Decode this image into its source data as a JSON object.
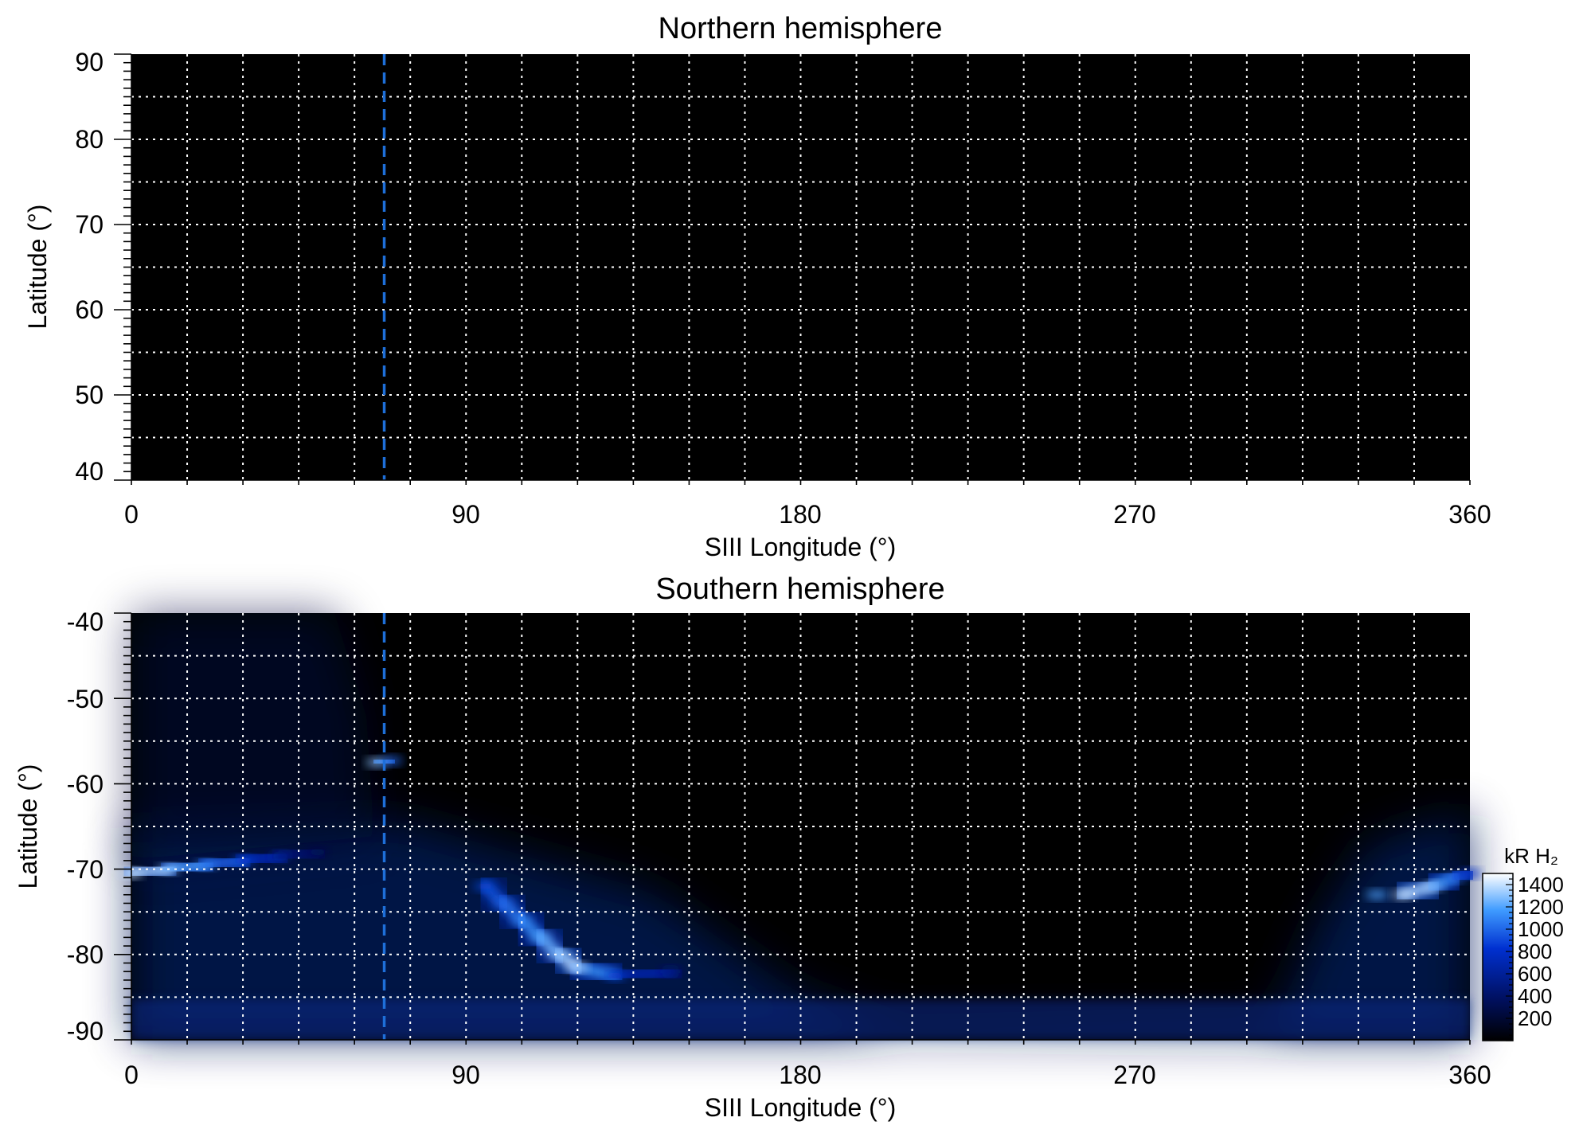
{
  "chart_data": [
    {
      "type": "heatmap",
      "title": "Northern hemisphere",
      "xlabel": "SIII Longitude (°)",
      "ylabel": "Latitude (°)",
      "xlim": [
        0,
        360
      ],
      "ylim": [
        40,
        90
      ],
      "xticks": [
        "0",
        "90",
        "180",
        "270",
        "360"
      ],
      "yticks": [
        "90",
        "80",
        "70",
        "60",
        "50",
        "40"
      ],
      "grid": true,
      "grid_spacing": {
        "longitude": 15,
        "latitude": 5
      },
      "marker_longitude": 68,
      "emission": []
    },
    {
      "type": "heatmap",
      "title": "Southern hemisphere",
      "xlabel": "SIII Longitude (°)",
      "ylabel": "Latitude (°)",
      "xlim": [
        0,
        360
      ],
      "ylim": [
        -90,
        -40
      ],
      "xticks": [
        "0",
        "90",
        "180",
        "270",
        "360"
      ],
      "yticks": [
        "-40",
        "-50",
        "-60",
        "-70",
        "-80",
        "-90"
      ],
      "grid": true,
      "grid_spacing": {
        "longitude": 15,
        "latitude": 5
      },
      "marker_longitude": 68,
      "emission": [
        {
          "region": "main oval arc 0-40°",
          "points": [
            [
              0,
              -70.5,
              1400
            ],
            [
              10,
              -70,
              1300
            ],
            [
              20,
              -69.5,
              1100
            ],
            [
              30,
              -69,
              900
            ],
            [
              40,
              -68.5,
              600
            ],
            [
              50,
              -68,
              300
            ]
          ]
        },
        {
          "region": "spot near 68°",
          "points": [
            [
              66,
              -57.5,
              1300
            ],
            [
              70,
              -57.3,
              1000
            ]
          ]
        },
        {
          "region": "arc 95-140°",
          "points": [
            [
              95,
              -72,
              900
            ],
            [
              100,
              -74,
              1000
            ],
            [
              105,
              -76,
              1100
            ],
            [
              110,
              -78,
              1200
            ],
            [
              115,
              -80,
              1300
            ],
            [
              120,
              -81.5,
              1400
            ],
            [
              130,
              -82.5,
              900
            ],
            [
              145,
              -82,
              500
            ]
          ]
        },
        {
          "region": "main oval 335-360°",
          "points": [
            [
              335,
              -73,
              1200
            ],
            [
              342,
              -73,
              1400
            ],
            [
              350,
              -72,
              1300
            ],
            [
              356,
              -71,
              1000
            ],
            [
              360,
              -70.5,
              800
            ]
          ]
        }
      ]
    }
  ],
  "colorbar": {
    "title": "kR H₂",
    "ticks": [
      "1400",
      "1200",
      "1000",
      "800",
      "600",
      "400",
      "200"
    ],
    "range": [
      0,
      1500
    ]
  },
  "colors": {
    "marker": "#1e6fd9",
    "grid": "#ffffff",
    "background": "#000000"
  }
}
